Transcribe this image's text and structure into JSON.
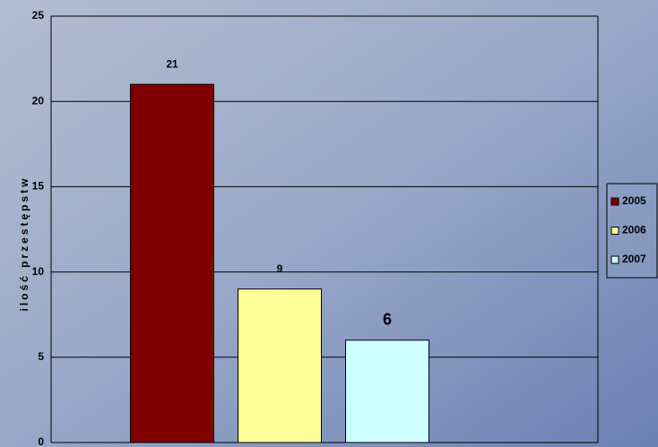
{
  "chart_data": {
    "type": "bar",
    "y_label": "ilość przestępstw",
    "categories": [
      null
    ],
    "series": [
      {
        "name": "2005",
        "color": "#800000",
        "values": [
          21
        ]
      },
      {
        "name": "2006",
        "color": "#ffff99",
        "values": [
          9
        ]
      },
      {
        "name": "2007",
        "color": "#ccffff",
        "values": [
          6
        ]
      }
    ],
    "ylim": [
      0,
      25
    ],
    "yticks": [
      0,
      5,
      10,
      15,
      20,
      25
    ],
    "grid": true,
    "legend": "right"
  }
}
